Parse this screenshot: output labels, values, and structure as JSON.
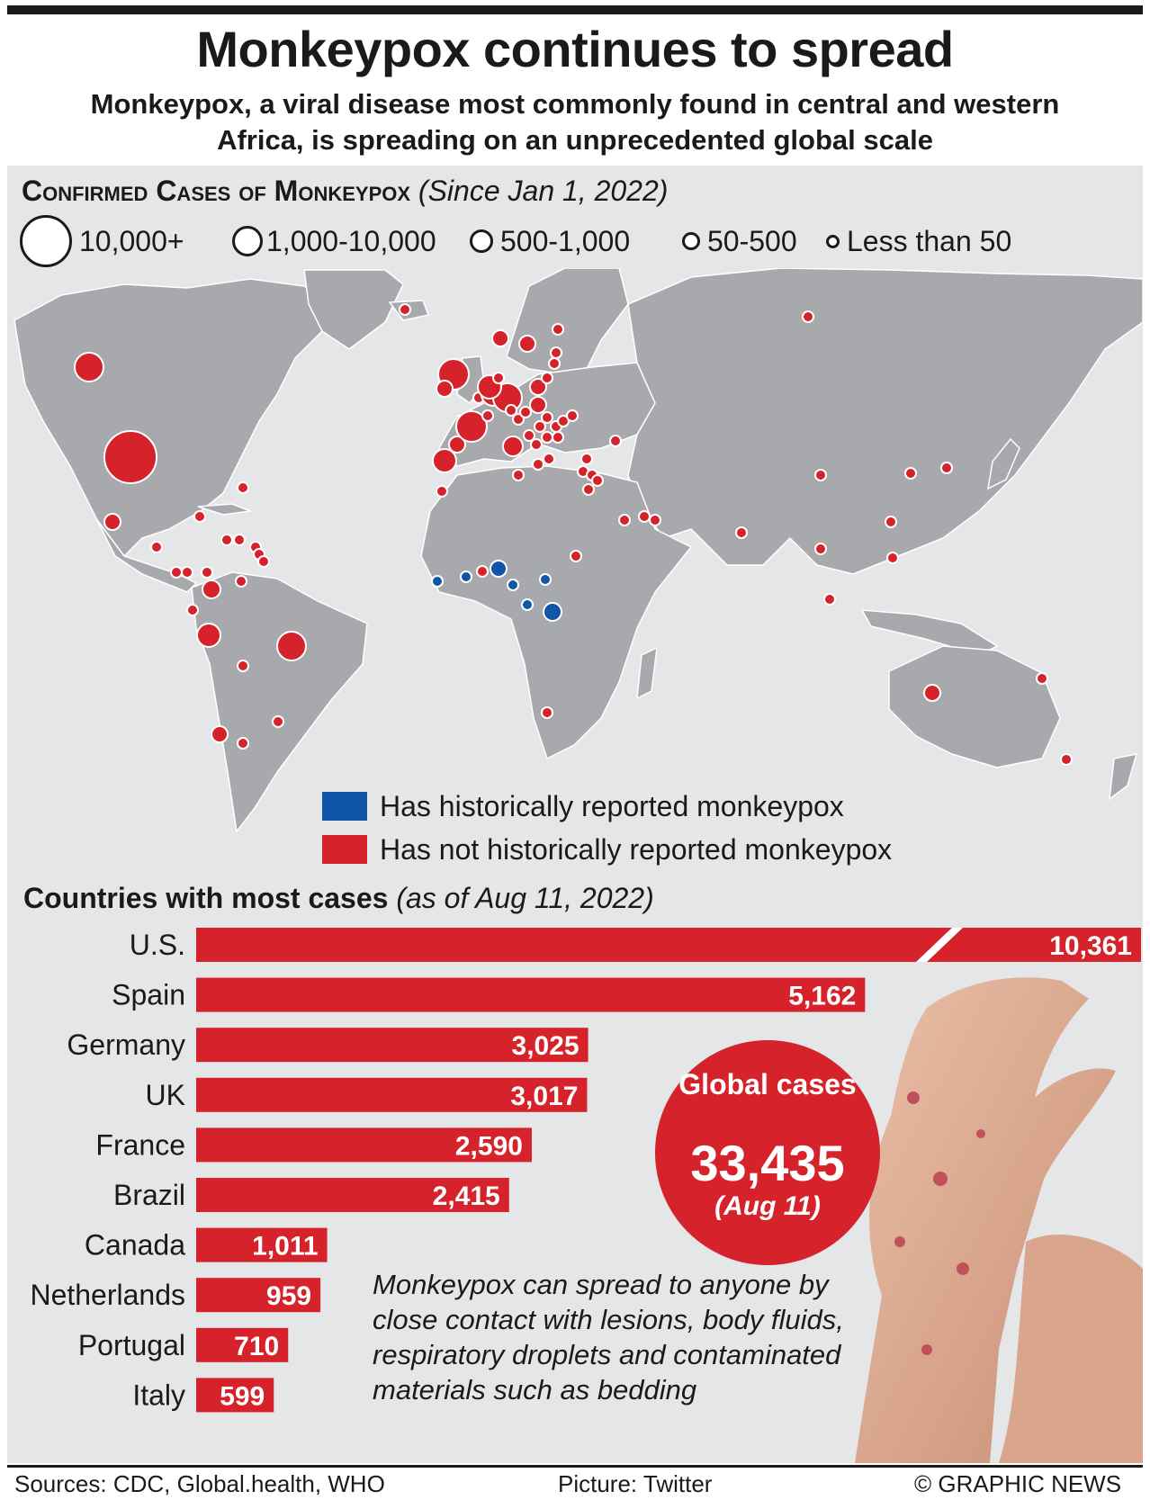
{
  "title": "Monkeypox continues to spread",
  "subtitle": "Monkeypox, a viral disease most commonly found in central and western Africa, is spreading on an unprecedented global scale",
  "map": {
    "heading": "Confirmed Cases of Monkeypox",
    "heading_note": "(Since Jan 1, 2022)",
    "size_legend": [
      "10,000+",
      "1,000-10,000",
      "500-1,000",
      "50-500",
      "Less than 50"
    ],
    "color_legend": [
      {
        "label": "Has historically reported monkeypox",
        "color": "#1155a8"
      },
      {
        "label": "Has not historically reported monkeypox",
        "color": "#d6222b"
      }
    ],
    "land_color": "#a7a9ac",
    "ocean_color": "#e4e6e7"
  },
  "chart_data": {
    "type": "bar",
    "title": "Countries with most cases",
    "subtitle": "(as of Aug 11, 2022)",
    "orientation": "horizontal",
    "categories": [
      "U.S.",
      "Spain",
      "Germany",
      "UK",
      "France",
      "Brazil",
      "Canada",
      "Netherlands",
      "Portugal",
      "Italy"
    ],
    "values": [
      10361,
      5162,
      3025,
      3017,
      2590,
      2415,
      1011,
      959,
      710,
      599
    ],
    "value_labels": [
      "10,361",
      "5,162",
      "3,025",
      "3,017",
      "2,590",
      "2,415",
      "1,011",
      "959",
      "710",
      "599"
    ],
    "broken_bar": "U.S.",
    "bar_color": "#d6222b"
  },
  "global": {
    "label": "Global cases",
    "value": "33,435",
    "date": "(Aug 11)"
  },
  "note": "Monkeypox can spread to anyone by close contact with lesions, body fluids, respiratory droplets and contaminated materials such as bedding",
  "footer": {
    "sources": "Sources: CDC, Global.health, WHO",
    "picture": "Picture: Twitter",
    "credit": "© GRAPHIC NEWS"
  }
}
